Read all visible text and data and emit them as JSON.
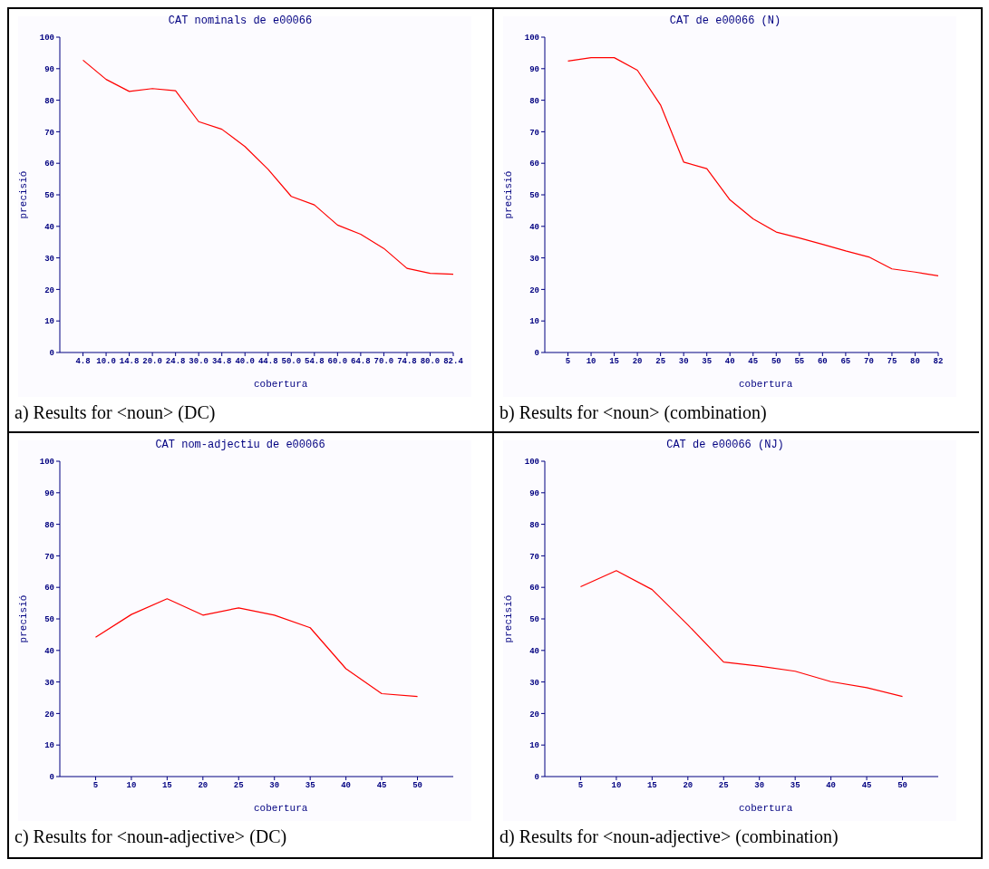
{
  "chart_data": [
    {
      "type": "line",
      "title": "CAT nominals de e00066",
      "xlabel": "cobertura",
      "ylabel": "precisió",
      "categories": [
        "4.8",
        "10.0",
        "14.8",
        "20.0",
        "24.8",
        "30.0",
        "34.8",
        "40.0",
        "44.8",
        "50.0",
        "54.8",
        "60.0",
        "64.8",
        "70.0",
        "74.8",
        "80.0",
        "82.4"
      ],
      "color": "#ff0000",
      "values": [
        92.7,
        86.6,
        82.8,
        83.7,
        83,
        73.2,
        70.8,
        65.3,
        58.1,
        49.5,
        46.8,
        40.4,
        37.5,
        33,
        26.7,
        25.1,
        24.8
      ],
      "ylim": [
        0,
        100
      ],
      "yticks": [
        0,
        10,
        20,
        30,
        40,
        50,
        60,
        70,
        80,
        90,
        100
      ],
      "annotations": [
        "a) Results for <noun> (DC)"
      ]
    },
    {
      "type": "line",
      "title": "CAT de e00066 (N)",
      "xlabel": "cobertura",
      "ylabel": "precisió",
      "categories": [
        "5",
        "10",
        "15",
        "20",
        "25",
        "30",
        "35",
        "40",
        "45",
        "50",
        "55",
        "60",
        "65",
        "70",
        "75",
        "80",
        "82"
      ],
      "color": "#ff0000",
      "values": [
        92.4,
        93.5,
        93.5,
        89.5,
        78.5,
        60.4,
        58.3,
        48.4,
        42.4,
        38.2,
        36.3,
        34.3,
        32.2,
        30.3,
        26.5,
        25.5,
        24.3
      ],
      "ylim": [
        0,
        100
      ],
      "yticks": [
        0,
        10,
        20,
        30,
        40,
        50,
        60,
        70,
        80,
        90,
        100
      ],
      "annotations": [
        "b) Results for <noun> (combination)"
      ]
    },
    {
      "type": "line",
      "title": "CAT nom-adjectiu de e00066",
      "xlabel": "cobertura",
      "ylabel": "precisió",
      "x": [
        5,
        10,
        15,
        20,
        25,
        30,
        35,
        40,
        45,
        50
      ],
      "color": "#ff0000",
      "values": [
        44.2,
        51.4,
        56.4,
        51.2,
        53.5,
        51.2,
        47.2,
        34.2,
        26.3,
        25.4
      ],
      "xlim": [
        0,
        55
      ],
      "xticks": [
        5,
        10,
        15,
        20,
        25,
        30,
        35,
        40,
        45,
        50
      ],
      "ylim": [
        0,
        100
      ],
      "yticks": [
        0,
        10,
        20,
        30,
        40,
        50,
        60,
        70,
        80,
        90,
        100
      ],
      "annotations": [
        "c) Results for <noun-adjective> (DC)"
      ]
    },
    {
      "type": "line",
      "title": "CAT de e00066 (NJ)",
      "xlabel": "cobertura",
      "ylabel": "precisió",
      "x": [
        5,
        10,
        15,
        20,
        25,
        30,
        35,
        40,
        45,
        50
      ],
      "color": "#ff0000",
      "values": [
        60.2,
        65.3,
        59.3,
        48.1,
        36.3,
        35,
        33.4,
        30.1,
        28.2,
        25.4
      ],
      "xlim": [
        0,
        55
      ],
      "xticks": [
        5,
        10,
        15,
        20,
        25,
        30,
        35,
        40,
        45,
        50
      ],
      "ylim": [
        0,
        100
      ],
      "yticks": [
        0,
        10,
        20,
        30,
        40,
        50,
        60,
        70,
        80,
        90,
        100
      ],
      "annotations": [
        "d) Results for <noun-adjective> (combination)"
      ]
    }
  ]
}
